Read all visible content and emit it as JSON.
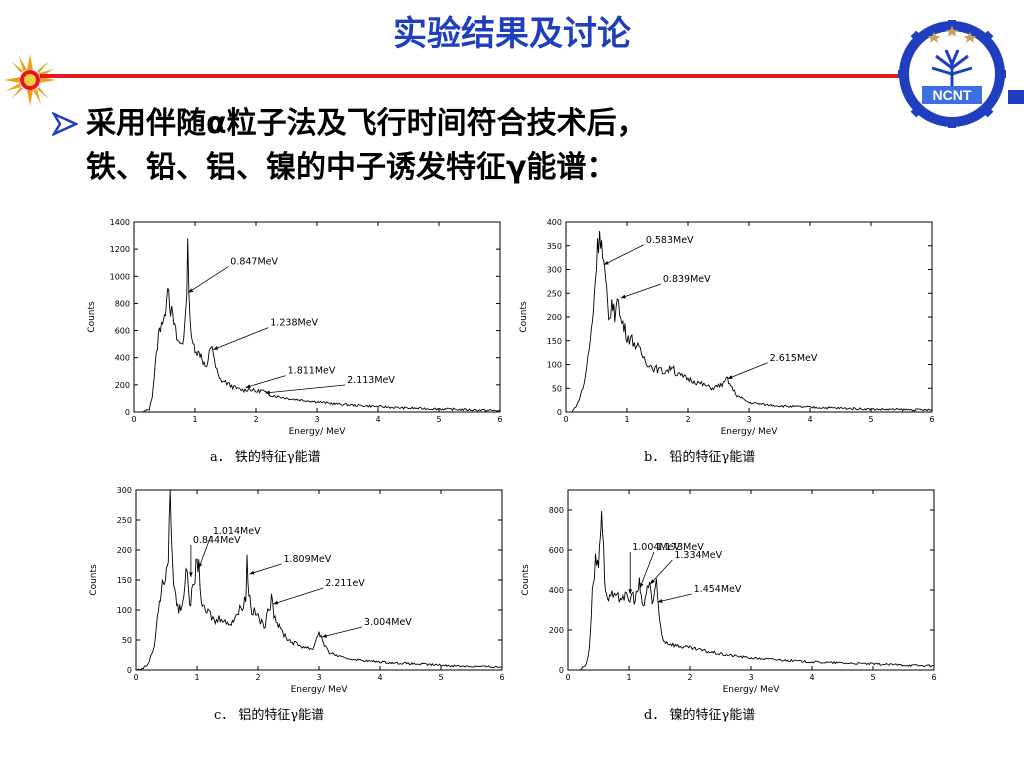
{
  "title": "实验结果及讨论",
  "bullet": {
    "line1": "采用伴随α粒子法及飞行时间符合技术后，",
    "line2": "铁、铅、铝、镍的中子诱发特征γ能谱："
  },
  "logo_text": "NCNT",
  "colors": {
    "title": "#1f3fbf",
    "rule": "#e8161d",
    "accent": "#1f3fbf",
    "sun": "#f0a020"
  },
  "chart_data": [
    {
      "id": "a",
      "type": "line",
      "xlabel": "Energy/ MeV",
      "ylabel": "Counts",
      "xlim": [
        0,
        6
      ],
      "ylim": [
        0,
        1400
      ],
      "xticks": [
        0,
        1,
        2,
        3,
        4,
        5,
        6
      ],
      "yticks": [
        0,
        200,
        400,
        600,
        800,
        1000,
        1200,
        1400
      ],
      "caption": "a．  铁的特征γ能谱",
      "series": [
        {
          "points": [
            [
              0,
              0
            ],
            [
              0.15,
              0
            ],
            [
              0.25,
              20
            ],
            [
              0.3,
              120
            ],
            [
              0.35,
              350
            ],
            [
              0.4,
              560
            ],
            [
              0.45,
              680
            ],
            [
              0.5,
              660
            ],
            [
              0.55,
              980
            ],
            [
              0.6,
              760
            ],
            [
              0.65,
              660
            ],
            [
              0.7,
              540
            ],
            [
              0.75,
              500
            ],
            [
              0.8,
              520
            ],
            [
              0.85,
              700
            ],
            [
              0.88,
              1200
            ],
            [
              0.92,
              700
            ],
            [
              0.95,
              500
            ],
            [
              1.0,
              480
            ],
            [
              1.05,
              430
            ],
            [
              1.1,
              430
            ],
            [
              1.15,
              350
            ],
            [
              1.2,
              320
            ],
            [
              1.25,
              480
            ],
            [
              1.28,
              500
            ],
            [
              1.32,
              360
            ],
            [
              1.4,
              240
            ],
            [
              1.5,
              220
            ],
            [
              1.6,
              190
            ],
            [
              1.7,
              170
            ],
            [
              1.8,
              160
            ],
            [
              1.9,
              170
            ],
            [
              2.0,
              150
            ],
            [
              2.1,
              160
            ],
            [
              2.2,
              130
            ],
            [
              2.4,
              110
            ],
            [
              2.6,
              95
            ],
            [
              2.8,
              85
            ],
            [
              3.0,
              75
            ],
            [
              3.3,
              60
            ],
            [
              3.6,
              50
            ],
            [
              4.0,
              40
            ],
            [
              4.4,
              30
            ],
            [
              4.8,
              25
            ],
            [
              5.2,
              20
            ],
            [
              5.6,
              15
            ],
            [
              6.0,
              10
            ]
          ]
        }
      ],
      "annotations": [
        {
          "label": "0.847MeV",
          "x": 0.89,
          "y": 880
        },
        {
          "label": "1.238MeV",
          "x": 1.3,
          "y": 460
        },
        {
          "label": "1.811MeV",
          "x": 1.83,
          "y": 180
        },
        {
          "label": "2.113MeV",
          "x": 2.15,
          "y": 140
        }
      ]
    },
    {
      "id": "b",
      "type": "line",
      "xlabel": "Energy/ MeV",
      "ylabel": "Counts",
      "xlim": [
        0,
        6
      ],
      "ylim": [
        0,
        400
      ],
      "xticks": [
        0,
        1,
        2,
        3,
        4,
        5,
        6
      ],
      "yticks": [
        0,
        50,
        100,
        150,
        200,
        250,
        300,
        350,
        400
      ],
      "caption": "b．  铅的特征γ能谱",
      "series": [
        {
          "points": [
            [
              0,
              0
            ],
            [
              0.1,
              0
            ],
            [
              0.2,
              20
            ],
            [
              0.3,
              60
            ],
            [
              0.4,
              150
            ],
            [
              0.45,
              220
            ],
            [
              0.5,
              320
            ],
            [
              0.55,
              390
            ],
            [
              0.6,
              330
            ],
            [
              0.65,
              270
            ],
            [
              0.7,
              190
            ],
            [
              0.75,
              230
            ],
            [
              0.8,
              200
            ],
            [
              0.84,
              260
            ],
            [
              0.88,
              200
            ],
            [
              0.95,
              180
            ],
            [
              1.0,
              160
            ],
            [
              1.1,
              150
            ],
            [
              1.2,
              130
            ],
            [
              1.3,
              110
            ],
            [
              1.4,
              95
            ],
            [
              1.5,
              90
            ],
            [
              1.6,
              85
            ],
            [
              1.7,
              90
            ],
            [
              1.75,
              100
            ],
            [
              1.8,
              80
            ],
            [
              1.9,
              75
            ],
            [
              2.0,
              70
            ],
            [
              2.2,
              60
            ],
            [
              2.4,
              50
            ],
            [
              2.5,
              55
            ],
            [
              2.6,
              60
            ],
            [
              2.63,
              72
            ],
            [
              2.7,
              55
            ],
            [
              2.8,
              35
            ],
            [
              3.0,
              20
            ],
            [
              3.3,
              15
            ],
            [
              3.6,
              12
            ],
            [
              4.0,
              10
            ],
            [
              4.5,
              8
            ],
            [
              5.0,
              6
            ],
            [
              5.5,
              5
            ],
            [
              6.0,
              4
            ]
          ]
        }
      ],
      "annotations": [
        {
          "label": "0.583MeV",
          "x": 0.62,
          "y": 310
        },
        {
          "label": "0.839MeV",
          "x": 0.9,
          "y": 240
        },
        {
          "label": "2.615MeV",
          "x": 2.65,
          "y": 70
        }
      ]
    },
    {
      "id": "c",
      "type": "line",
      "xlabel": "Energy/ MeV",
      "ylabel": "Counts",
      "xlim": [
        0,
        6
      ],
      "ylim": [
        0,
        300
      ],
      "xticks": [
        0,
        1,
        2,
        3,
        4,
        5,
        6
      ],
      "yticks": [
        0,
        50,
        100,
        150,
        200,
        250,
        300
      ],
      "caption": "c．  铝的特征γ能谱",
      "series": [
        {
          "points": [
            [
              0,
              0
            ],
            [
              0.1,
              2
            ],
            [
              0.2,
              10
            ],
            [
              0.3,
              40
            ],
            [
              0.35,
              90
            ],
            [
              0.4,
              120
            ],
            [
              0.45,
              150
            ],
            [
              0.5,
              160
            ],
            [
              0.53,
              190
            ],
            [
              0.56,
              305
            ],
            [
              0.6,
              170
            ],
            [
              0.65,
              120
            ],
            [
              0.7,
              100
            ],
            [
              0.75,
              110
            ],
            [
              0.8,
              140
            ],
            [
              0.84,
              170
            ],
            [
              0.88,
              110
            ],
            [
              0.95,
              140
            ],
            [
              1.0,
              185
            ],
            [
              1.03,
              170
            ],
            [
              1.07,
              120
            ],
            [
              1.1,
              100
            ],
            [
              1.2,
              95
            ],
            [
              1.3,
              80
            ],
            [
              1.4,
              90
            ],
            [
              1.5,
              75
            ],
            [
              1.6,
              85
            ],
            [
              1.7,
              100
            ],
            [
              1.8,
              120
            ],
            [
              1.82,
              185
            ],
            [
              1.85,
              130
            ],
            [
              1.9,
              100
            ],
            [
              2.0,
              90
            ],
            [
              2.1,
              70
            ],
            [
              2.2,
              110
            ],
            [
              2.22,
              130
            ],
            [
              2.26,
              95
            ],
            [
              2.35,
              70
            ],
            [
              2.5,
              50
            ],
            [
              2.7,
              40
            ],
            [
              2.9,
              35
            ],
            [
              3.0,
              65
            ],
            [
              3.05,
              50
            ],
            [
              3.15,
              30
            ],
            [
              3.4,
              20
            ],
            [
              3.8,
              15
            ],
            [
              4.2,
              12
            ],
            [
              4.6,
              10
            ],
            [
              5.0,
              8
            ],
            [
              5.5,
              6
            ],
            [
              6.0,
              5
            ]
          ]
        }
      ],
      "annotations": [
        {
          "label": "0.844MeV",
          "x": 0.9,
          "y": 155
        },
        {
          "label": "1.014MeV",
          "x": 1.03,
          "y": 170
        },
        {
          "label": "1.809MeV",
          "x": 1.86,
          "y": 160
        },
        {
          "label": "2.211eV",
          "x": 2.25,
          "y": 110
        },
        {
          "label": "3.004MeV",
          "x": 3.05,
          "y": 55
        }
      ]
    },
    {
      "id": "d",
      "type": "line",
      "xlabel": "Energy/ MeV",
      "ylabel": "Counts",
      "xlim": [
        0,
        6
      ],
      "ylim": [
        0,
        900
      ],
      "xticks": [
        0,
        1,
        2,
        3,
        4,
        5,
        6
      ],
      "yticks": [
        0,
        200,
        400,
        600,
        800
      ],
      "caption": "d．  镍的特征γ能谱",
      "series": [
        {
          "points": [
            [
              0,
              0
            ],
            [
              0.2,
              0
            ],
            [
              0.3,
              30
            ],
            [
              0.35,
              100
            ],
            [
              0.4,
              400
            ],
            [
              0.45,
              540
            ],
            [
              0.5,
              530
            ],
            [
              0.53,
              690
            ],
            [
              0.55,
              820
            ],
            [
              0.6,
              480
            ],
            [
              0.63,
              360
            ],
            [
              0.7,
              370
            ],
            [
              0.8,
              350
            ],
            [
              0.9,
              380
            ],
            [
              1.0,
              340
            ],
            [
              1.05,
              380
            ],
            [
              1.1,
              350
            ],
            [
              1.17,
              430
            ],
            [
              1.2,
              350
            ],
            [
              1.25,
              320
            ],
            [
              1.3,
              410
            ],
            [
              1.34,
              450
            ],
            [
              1.38,
              330
            ],
            [
              1.42,
              380
            ],
            [
              1.45,
              420
            ],
            [
              1.5,
              250
            ],
            [
              1.55,
              160
            ],
            [
              1.6,
              140
            ],
            [
              1.8,
              120
            ],
            [
              2.0,
              110
            ],
            [
              2.5,
              80
            ],
            [
              3.0,
              60
            ],
            [
              3.5,
              50
            ],
            [
              4.0,
              40
            ],
            [
              4.5,
              35
            ],
            [
              5.0,
              30
            ],
            [
              5.5,
              25
            ],
            [
              6.0,
              20
            ]
          ]
        }
      ],
      "annotations": [
        {
          "label": "1.004MeV",
          "x": 1.02,
          "y": 380
        },
        {
          "label": "1.173MeV",
          "x": 1.18,
          "y": 410
        },
        {
          "label": "1.334MeV",
          "x": 1.35,
          "y": 430
        },
        {
          "label": "1.454MeV",
          "x": 1.47,
          "y": 340
        }
      ]
    }
  ]
}
